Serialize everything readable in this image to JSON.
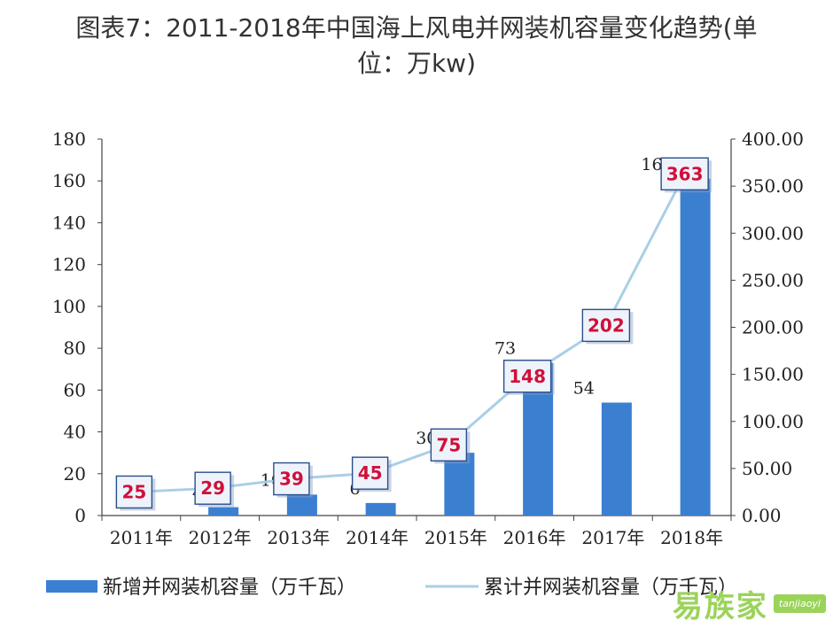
{
  "title_line1": "图表7：2011-2018年中国海上风电并网装机容量变化趋势(单",
  "title_line2": "位：万kw)",
  "chart_data": {
    "type": "bar",
    "categories": [
      "2011年",
      "2012年",
      "2013年",
      "2014年",
      "2015年",
      "2016年",
      "2017年",
      "2018年"
    ],
    "series": [
      {
        "name": "新增并网装机容量（万千瓦）",
        "type": "bar",
        "axis": "left",
        "color": "#3b7fd1",
        "values": [
          null,
          4,
          10,
          6,
          30,
          73,
          54,
          161
        ],
        "value_labels": [
          "",
          "4",
          "10",
          "6",
          "30",
          "73",
          "54",
          "161"
        ]
      },
      {
        "name": "累计并网装机容量（万千瓦）",
        "type": "line",
        "axis": "right",
        "color": "#a9cfe6",
        "values": [
          25,
          29,
          39,
          45,
          75,
          148,
          202,
          363
        ],
        "value_labels": [
          "25",
          "29",
          "39",
          "45",
          "75",
          "148",
          "202",
          "363"
        ]
      }
    ],
    "y_left": {
      "min": 0,
      "max": 180,
      "ticks": [
        "0",
        "20",
        "40",
        "60",
        "80",
        "100",
        "120",
        "140",
        "160",
        "180"
      ]
    },
    "y_right": {
      "min": 0,
      "max": 400,
      "ticks": [
        "0.00",
        "50.00",
        "100.00",
        "150.00",
        "200.00",
        "250.00",
        "300.00",
        "350.00",
        "400.00"
      ]
    },
    "grid": false,
    "legend_position": "bottom"
  },
  "watermark": {
    "text": "易族家",
    "url": "tanjiaoyi"
  },
  "colors": {
    "bar": "#3b7fd1",
    "line": "#a9cfe6",
    "label_red": "#d0103a",
    "label_box_bg": "#eef3fb",
    "label_box_border": "#2a4e8c"
  }
}
